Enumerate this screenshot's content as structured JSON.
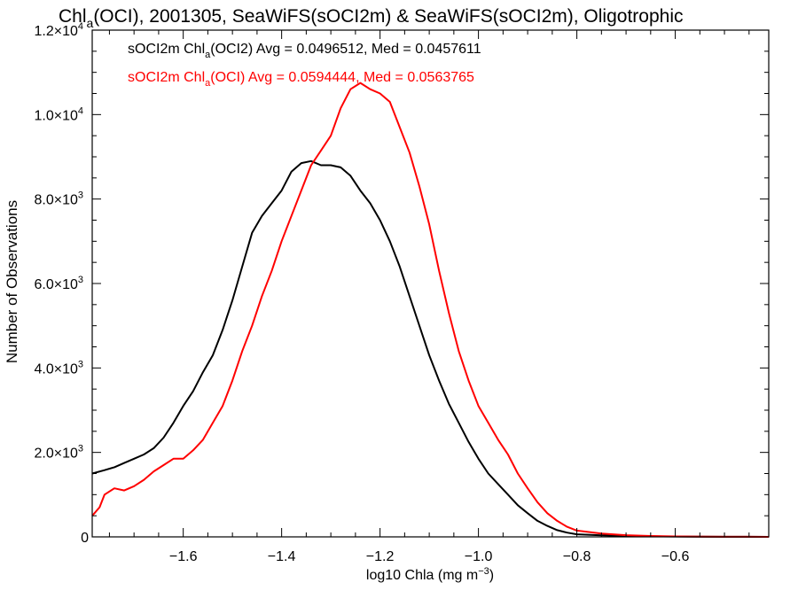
{
  "chart_data": {
    "type": "line",
    "title_parts": [
      "Chl",
      "a",
      "(OCI), 2001305, SeaWiFS(sOCI2m) & SeaWiFS(sOCI2m), Oligotrophic"
    ],
    "xlabel_parts": [
      "log10 Chla (mg m",
      "−3",
      ")"
    ],
    "ylabel": "Number of Observations",
    "xlim": [
      -1.785,
      -0.41
    ],
    "ylim": [
      0,
      12000
    ],
    "x_ticks": [
      -1.6,
      -1.4,
      -1.2,
      -1.0,
      -0.8,
      -0.6
    ],
    "x_tick_labels": [
      "−1.6",
      "−1.4",
      "−1.2",
      "−1.0",
      "−0.8",
      "−0.6"
    ],
    "y_ticks": [
      0,
      2000,
      4000,
      6000,
      8000,
      10000,
      12000
    ],
    "y_tick_labels": [
      {
        "mantissa": "0",
        "exp": ""
      },
      {
        "mantissa": "2.0×10",
        "exp": "3"
      },
      {
        "mantissa": "4.0×10",
        "exp": "3"
      },
      {
        "mantissa": "6.0×10",
        "exp": "3"
      },
      {
        "mantissa": "8.0×10",
        "exp": "3"
      },
      {
        "mantissa": "1.0×10",
        "exp": "4"
      },
      {
        "mantissa": "1.2×10",
        "exp": "4"
      }
    ],
    "legend": [
      {
        "parts": [
          "sOCI2m Chl",
          "a",
          "(OCI2) Avg = 0.0496512, Med = 0.0457611"
        ],
        "color": "#000000"
      },
      {
        "parts": [
          "sOCI2m Chl",
          "a",
          "(OCI) Avg = 0.0594444, Med = 0.0563765"
        ],
        "color": "#ff0000"
      }
    ],
    "series": [
      {
        "color": "#000000",
        "x": [
          -1.785,
          -1.76,
          -1.74,
          -1.72,
          -1.7,
          -1.68,
          -1.66,
          -1.64,
          -1.62,
          -1.6,
          -1.58,
          -1.56,
          -1.54,
          -1.52,
          -1.5,
          -1.48,
          -1.46,
          -1.44,
          -1.42,
          -1.4,
          -1.38,
          -1.36,
          -1.34,
          -1.32,
          -1.3,
          -1.28,
          -1.26,
          -1.24,
          -1.22,
          -1.2,
          -1.18,
          -1.16,
          -1.14,
          -1.12,
          -1.1,
          -1.08,
          -1.06,
          -1.04,
          -1.02,
          -1.0,
          -0.98,
          -0.96,
          -0.94,
          -0.92,
          -0.9,
          -0.88,
          -0.86,
          -0.84,
          -0.82,
          -0.8,
          -0.75,
          -0.7,
          -0.65,
          -0.6,
          -0.55,
          -0.5,
          -0.45,
          -0.41
        ],
        "y": [
          1500,
          1580,
          1650,
          1750,
          1850,
          1950,
          2100,
          2350,
          2700,
          3100,
          3450,
          3900,
          4300,
          4900,
          5600,
          6400,
          7200,
          7600,
          7900,
          8200,
          8650,
          8850,
          8900,
          8800,
          8800,
          8750,
          8550,
          8200,
          7900,
          7500,
          7000,
          6400,
          5700,
          5000,
          4300,
          3700,
          3150,
          2700,
          2250,
          1850,
          1500,
          1250,
          1000,
          750,
          560,
          380,
          260,
          160,
          100,
          60,
          35,
          20,
          12,
          8,
          5,
          3,
          2,
          1
        ]
      },
      {
        "color": "#ff0000",
        "x": [
          -1.785,
          -1.77,
          -1.76,
          -1.74,
          -1.72,
          -1.7,
          -1.68,
          -1.66,
          -1.64,
          -1.62,
          -1.6,
          -1.58,
          -1.56,
          -1.54,
          -1.52,
          -1.5,
          -1.48,
          -1.46,
          -1.44,
          -1.42,
          -1.4,
          -1.38,
          -1.36,
          -1.34,
          -1.32,
          -1.3,
          -1.28,
          -1.26,
          -1.24,
          -1.22,
          -1.2,
          -1.18,
          -1.16,
          -1.14,
          -1.12,
          -1.1,
          -1.08,
          -1.06,
          -1.04,
          -1.02,
          -1.0,
          -0.98,
          -0.96,
          -0.94,
          -0.92,
          -0.9,
          -0.88,
          -0.86,
          -0.84,
          -0.82,
          -0.8,
          -0.75,
          -0.7,
          -0.65,
          -0.6,
          -0.55,
          -0.5,
          -0.45,
          -0.41
        ],
        "y": [
          500,
          700,
          1000,
          1150,
          1100,
          1200,
          1350,
          1550,
          1700,
          1850,
          1850,
          2050,
          2300,
          2700,
          3100,
          3700,
          4400,
          5000,
          5700,
          6300,
          7000,
          7600,
          8200,
          8800,
          9150,
          9500,
          10150,
          10600,
          10750,
          10600,
          10500,
          10300,
          9700,
          9100,
          8300,
          7400,
          6300,
          5300,
          4400,
          3700,
          3100,
          2700,
          2300,
          1950,
          1500,
          1150,
          820,
          560,
          380,
          240,
          150,
          80,
          40,
          20,
          10,
          6,
          3,
          2,
          1
        ]
      }
    ]
  }
}
